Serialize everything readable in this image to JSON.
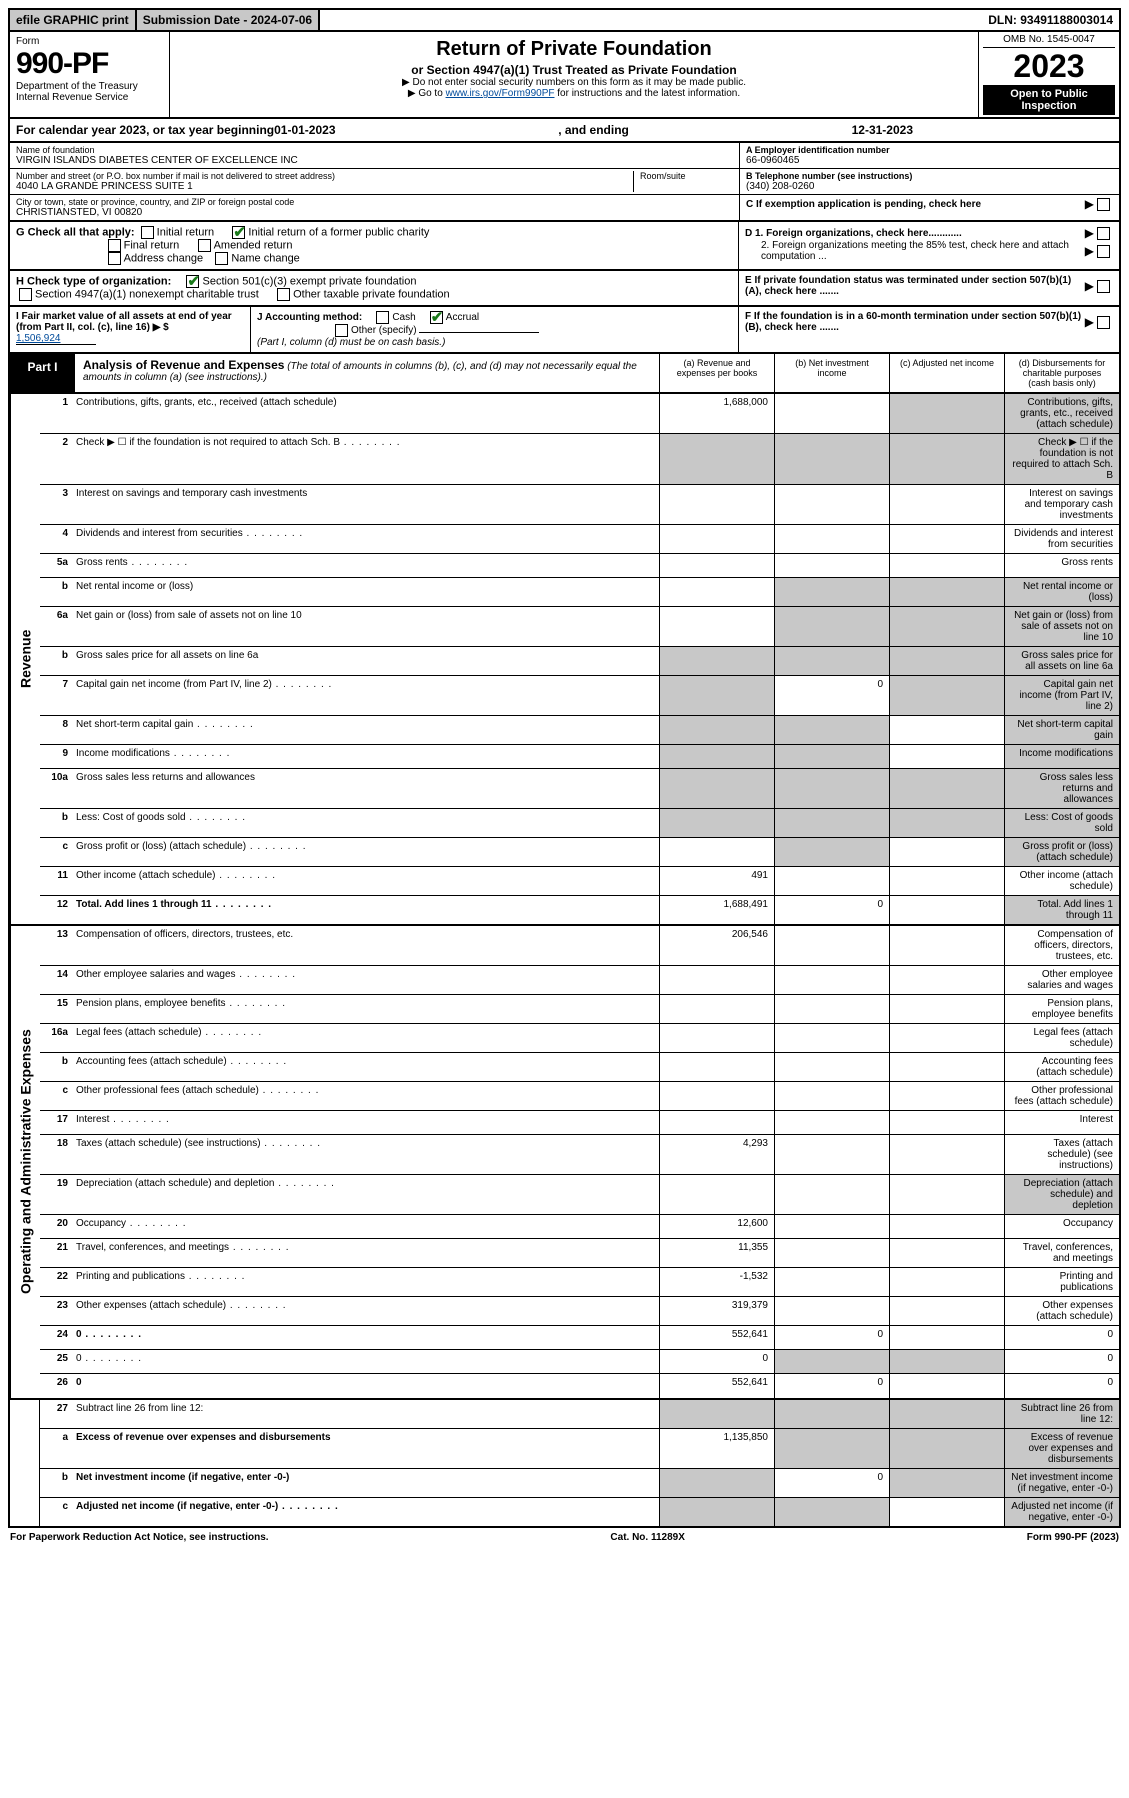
{
  "top": {
    "efile": "efile GRAPHIC print",
    "submission": "Submission Date - 2024-07-06",
    "dln": "DLN: 93491188003014"
  },
  "header": {
    "form_word": "Form",
    "form_num": "990-PF",
    "dept": "Department of the Treasury",
    "irs": "Internal Revenue Service",
    "title": "Return of Private Foundation",
    "subtitle": "or Section 4947(a)(1) Trust Treated as Private Foundation",
    "note1": "▶ Do not enter social security numbers on this form as it may be made public.",
    "note2_pre": "▶ Go to ",
    "note2_link": "www.irs.gov/Form990PF",
    "note2_post": " for instructions and the latest information.",
    "omb": "OMB No. 1545-0047",
    "year": "2023",
    "open": "Open to Public Inspection"
  },
  "cal_year": {
    "pre": "For calendar year 2023, or tax year beginning ",
    "begin": "01-01-2023",
    "mid": " , and ending ",
    "end": "12-31-2023"
  },
  "info": {
    "name_label": "Name of foundation",
    "name": "VIRGIN ISLANDS DIABETES CENTER OF EXCELLENCE INC",
    "addr_label": "Number and street (or P.O. box number if mail is not delivered to street address)",
    "addr": "4040 LA GRANDE PRINCESS SUITE 1",
    "room_label": "Room/suite",
    "city_label": "City or town, state or province, country, and ZIP or foreign postal code",
    "city": "CHRISTIANSTED, VI  00820",
    "ein_label": "A Employer identification number",
    "ein": "66-0960465",
    "phone_label": "B Telephone number (see instructions)",
    "phone": "(340) 208-0260",
    "c": "C  If exemption application is pending, check here",
    "d1": "D 1. Foreign organizations, check here............",
    "d2": "2. Foreign organizations meeting the 85% test, check here and attach computation ...",
    "e": "E  If private foundation status was terminated under section 507(b)(1)(A), check here .......",
    "f": "F  If the foundation is in a 60-month termination under section 507(b)(1)(B), check here .......",
    "g_label": "G Check all that apply:",
    "g_opts": [
      "Initial return",
      "Initial return of a former public charity",
      "Final return",
      "Amended return",
      "Address change",
      "Name change"
    ],
    "h_label": "H Check type of organization:",
    "h_opts": [
      "Section 501(c)(3) exempt private foundation",
      "Section 4947(a)(1) nonexempt charitable trust",
      "Other taxable private foundation"
    ],
    "i_label": "I Fair market value of all assets at end of year (from Part II, col. (c), line 16) ▶ $",
    "i_val": "1,506,924",
    "j_label": "J Accounting method:",
    "j_cash": "Cash",
    "j_accrual": "Accrual",
    "j_other": "Other (specify)",
    "j_note": "(Part I, column (d) must be on cash basis.)"
  },
  "part1": {
    "label": "Part I",
    "title": "Analysis of Revenue and Expenses",
    "title_note": "(The total of amounts in columns (b), (c), and (d) may not necessarily equal the amounts in column (a) (see instructions).)",
    "col_a": "(a) Revenue and expenses per books",
    "col_b": "(b) Net investment income",
    "col_c": "(c) Adjusted net income",
    "col_d": "(d) Disbursements for charitable purposes (cash basis only)"
  },
  "vert": {
    "revenue": "Revenue",
    "expenses": "Operating and Administrative Expenses"
  },
  "rows": [
    {
      "n": "1",
      "d": "Contributions, gifts, grants, etc., received (attach schedule)",
      "a": "1,688,000",
      "shade_b": false,
      "shade_c": true,
      "shade_d": true
    },
    {
      "n": "2",
      "d": "Check ▶ ☐ if the foundation is not required to attach Sch. B",
      "dots": true,
      "shade_a": true,
      "shade_b": true,
      "shade_c": true,
      "shade_d": true
    },
    {
      "n": "3",
      "d": "Interest on savings and temporary cash investments"
    },
    {
      "n": "4",
      "d": "Dividends and interest from securities",
      "dots": true
    },
    {
      "n": "5a",
      "d": "Gross rents",
      "dots": true
    },
    {
      "n": "b",
      "d": "Net rental income or (loss)",
      "shade_a": false,
      "shade_b": true,
      "shade_c": true,
      "shade_d": true
    },
    {
      "n": "6a",
      "d": "Net gain or (loss) from sale of assets not on line 10",
      "shade_b": true,
      "shade_c": true,
      "shade_d": true
    },
    {
      "n": "b",
      "d": "Gross sales price for all assets on line 6a",
      "shade_a": true,
      "shade_b": true,
      "shade_c": true,
      "shade_d": true
    },
    {
      "n": "7",
      "d": "Capital gain net income (from Part IV, line 2)",
      "dots": true,
      "shade_a": true,
      "b": "0",
      "shade_c": true,
      "shade_d": true
    },
    {
      "n": "8",
      "d": "Net short-term capital gain",
      "dots": true,
      "shade_a": true,
      "shade_b": true,
      "shade_d": true
    },
    {
      "n": "9",
      "d": "Income modifications",
      "dots": true,
      "shade_a": true,
      "shade_b": true,
      "shade_d": true
    },
    {
      "n": "10a",
      "d": "Gross sales less returns and allowances",
      "shade_a": true,
      "shade_b": true,
      "shade_c": true,
      "shade_d": true
    },
    {
      "n": "b",
      "d": "Less: Cost of goods sold",
      "dots": true,
      "shade_a": true,
      "shade_b": true,
      "shade_c": true,
      "shade_d": true
    },
    {
      "n": "c",
      "d": "Gross profit or (loss) (attach schedule)",
      "dots": true,
      "shade_b": true,
      "shade_d": true
    },
    {
      "n": "11",
      "d": "Other income (attach schedule)",
      "dots": true,
      "a": "491"
    },
    {
      "n": "12",
      "d": "Total. Add lines 1 through 11",
      "dots": true,
      "bold": true,
      "a": "1,688,491",
      "b": "0",
      "shade_d": true
    }
  ],
  "exp_rows": [
    {
      "n": "13",
      "d": "Compensation of officers, directors, trustees, etc.",
      "a": "206,546"
    },
    {
      "n": "14",
      "d": "Other employee salaries and wages",
      "dots": true
    },
    {
      "n": "15",
      "d": "Pension plans, employee benefits",
      "dots": true
    },
    {
      "n": "16a",
      "d": "Legal fees (attach schedule)",
      "dots": true
    },
    {
      "n": "b",
      "d": "Accounting fees (attach schedule)",
      "dots": true
    },
    {
      "n": "c",
      "d": "Other professional fees (attach schedule)",
      "dots": true
    },
    {
      "n": "17",
      "d": "Interest",
      "dots": true
    },
    {
      "n": "18",
      "d": "Taxes (attach schedule) (see instructions)",
      "dots": true,
      "a": "4,293"
    },
    {
      "n": "19",
      "d": "Depreciation (attach schedule) and depletion",
      "dots": true,
      "shade_d": true
    },
    {
      "n": "20",
      "d": "Occupancy",
      "dots": true,
      "a": "12,600"
    },
    {
      "n": "21",
      "d": "Travel, conferences, and meetings",
      "dots": true,
      "a": "11,355"
    },
    {
      "n": "22",
      "d": "Printing and publications",
      "dots": true,
      "a": "-1,532"
    },
    {
      "n": "23",
      "d": "Other expenses (attach schedule)",
      "dots": true,
      "a": "319,379"
    },
    {
      "n": "24",
      "d": "0",
      "dots": true,
      "bold": true,
      "a": "552,641",
      "b": "0"
    },
    {
      "n": "25",
      "d": "0",
      "dots": true,
      "a": "0",
      "shade_b": true,
      "shade_c": true
    },
    {
      "n": "26",
      "d": "0",
      "bold": true,
      "a": "552,641",
      "b": "0"
    }
  ],
  "final_rows": [
    {
      "n": "27",
      "d": "Subtract line 26 from line 12:",
      "shade_a": true,
      "shade_b": true,
      "shade_c": true,
      "shade_d": true
    },
    {
      "n": "a",
      "d": "Excess of revenue over expenses and disbursements",
      "bold": true,
      "a": "1,135,850",
      "shade_b": true,
      "shade_c": true,
      "shade_d": true
    },
    {
      "n": "b",
      "d": "Net investment income (if negative, enter -0-)",
      "bold": true,
      "shade_a": true,
      "b": "0",
      "shade_c": true,
      "shade_d": true
    },
    {
      "n": "c",
      "d": "Adjusted net income (if negative, enter -0-)",
      "bold": true,
      "dots": true,
      "shade_a": true,
      "shade_b": true,
      "shade_d": true
    }
  ],
  "footer": {
    "left": "For Paperwork Reduction Act Notice, see instructions.",
    "mid": "Cat. No. 11289X",
    "right": "Form 990-PF (2023)"
  },
  "colors": {
    "shade": "#c8c8c8",
    "link": "#004b9b",
    "check": "#1a7a1a"
  }
}
